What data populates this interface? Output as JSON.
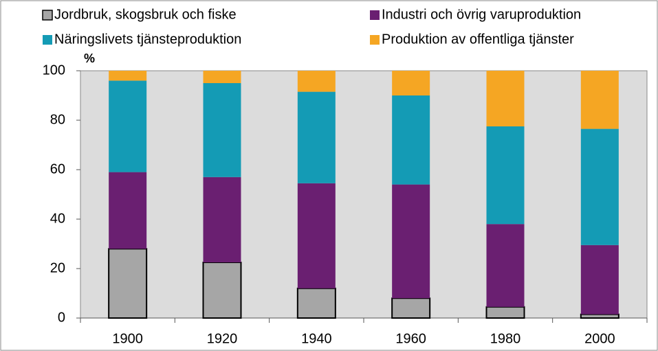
{
  "chart_data": {
    "type": "stacked-bar",
    "y_label": "%",
    "categories": [
      "1900",
      "1920",
      "1940",
      "1960",
      "1980",
      "2000"
    ],
    "series": [
      {
        "name": "Jordbruk, skogsbruk och fiske",
        "color": "#a6a6a6",
        "values": [
          28,
          22.5,
          12,
          8,
          4.5,
          1.5
        ]
      },
      {
        "name": "Industri och övrig varuproduktion",
        "color": "#6a1f71",
        "values": [
          31,
          34.5,
          42.5,
          46,
          33.5,
          28
        ]
      },
      {
        "name": "Näringslivets tjänsteproduktion",
        "color": "#149bb5",
        "values": [
          37,
          38,
          37,
          36,
          39.5,
          47
        ]
      },
      {
        "name": "Produktion av offentliga tjänster",
        "color": "#f5a623",
        "values": [
          4,
          5,
          8.5,
          10,
          22.5,
          23.5
        ]
      }
    ],
    "ylim": [
      0,
      100
    ],
    "yticks": [
      0,
      20,
      40,
      60,
      80,
      100
    ],
    "grid": false
  }
}
